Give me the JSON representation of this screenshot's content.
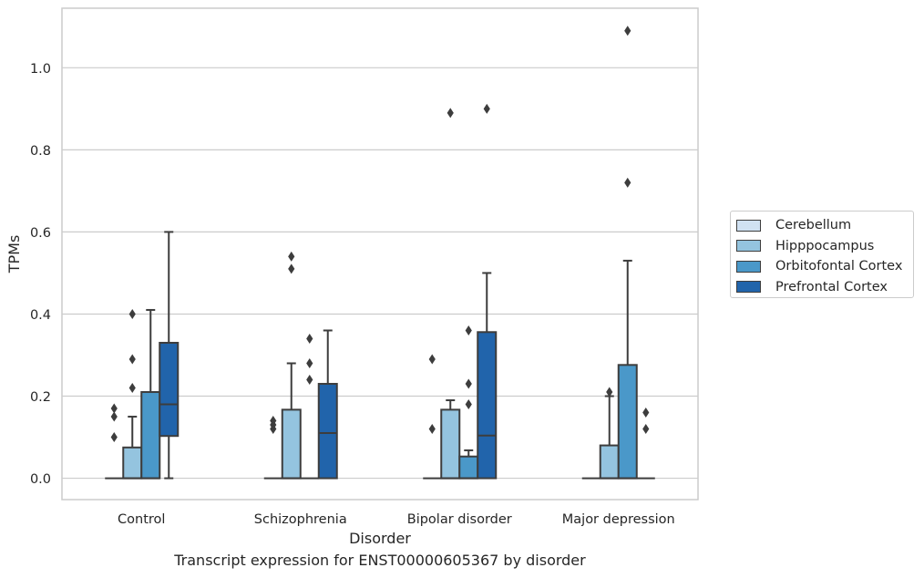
{
  "chart_data": {
    "type": "boxplot",
    "title": "",
    "caption": "Transcript expression for ENST00000605367 by disorder",
    "xlabel": "Disorder",
    "ylabel": "TPMs",
    "ylim": [
      -0.052,
      1.145
    ],
    "yticks": [
      0.0,
      0.2,
      0.4,
      0.6,
      0.8,
      1.0
    ],
    "ytick_labels": [
      "0.0",
      "0.2",
      "0.4",
      "0.6",
      "0.8",
      "1.0"
    ],
    "grid": "horizontal",
    "legend_position": "right",
    "categories": [
      "Control",
      "Schizophrenia",
      "Bipolar disorder",
      "Major depression"
    ],
    "series": [
      {
        "name": "Cerebellum",
        "color": "#d0e1f2",
        "boxes": [
          {
            "q1": 0,
            "median": 0,
            "q3": 0,
            "whisker_low": 0,
            "whisker_high": 0,
            "outliers": [
              0.1,
              0.15,
              0.17
            ]
          },
          {
            "q1": 0,
            "median": 0,
            "q3": 0,
            "whisker_low": 0,
            "whisker_high": 0,
            "outliers": [
              0.12,
              0.13,
              0.14
            ]
          },
          {
            "q1": 0,
            "median": 0,
            "q3": 0,
            "whisker_low": 0,
            "whisker_high": 0,
            "outliers": [
              0.12,
              0.29
            ]
          },
          {
            "q1": 0,
            "median": 0,
            "q3": 0,
            "whisker_low": 0,
            "whisker_high": 0,
            "outliers": []
          }
        ]
      },
      {
        "name": "Hipppocampus",
        "color": "#94c4df",
        "boxes": [
          {
            "q1": 0,
            "median": 0,
            "q3": 0.075,
            "whisker_low": 0,
            "whisker_high": 0.15,
            "outliers": [
              0.22,
              0.29,
              0.4
            ]
          },
          {
            "q1": 0,
            "median": 0,
            "q3": 0.167,
            "whisker_low": 0,
            "whisker_high": 0.28,
            "outliers": [
              0.51,
              0.54
            ]
          },
          {
            "q1": 0,
            "median": 0,
            "q3": 0.167,
            "whisker_low": 0,
            "whisker_high": 0.19,
            "outliers": [
              0.89
            ]
          },
          {
            "q1": 0,
            "median": 0,
            "q3": 0.08,
            "whisker_low": 0,
            "whisker_high": 0.2,
            "outliers": [
              0.21
            ]
          }
        ]
      },
      {
        "name": "Orbitofontal Cortex",
        "color": "#4a98c9",
        "boxes": [
          {
            "q1": 0,
            "median": 0,
            "q3": 0.21,
            "whisker_low": 0,
            "whisker_high": 0.41,
            "outliers": []
          },
          {
            "q1": 0,
            "median": 0,
            "q3": 0,
            "whisker_low": 0,
            "whisker_high": 0,
            "outliers": [
              0.24,
              0.28,
              0.34
            ]
          },
          {
            "q1": 0,
            "median": 0,
            "q3": 0.053,
            "whisker_low": 0,
            "whisker_high": 0.068,
            "outliers": [
              0.18,
              0.23,
              0.36
            ]
          },
          {
            "q1": 0,
            "median": 0,
            "q3": 0.276,
            "whisker_low": 0,
            "whisker_high": 0.53,
            "outliers": [
              0.72,
              1.09
            ]
          }
        ]
      },
      {
        "name": "Prefrontal Cortex",
        "color": "#2164ab",
        "boxes": [
          {
            "q1": 0.103,
            "median": 0.18,
            "q3": 0.33,
            "whisker_low": 0,
            "whisker_high": 0.6,
            "outliers": []
          },
          {
            "q1": 0,
            "median": 0.11,
            "q3": 0.23,
            "whisker_low": 0,
            "whisker_high": 0.36,
            "outliers": []
          },
          {
            "q1": 0,
            "median": 0.104,
            "q3": 0.356,
            "whisker_low": 0,
            "whisker_high": 0.5,
            "outliers": [
              0.9
            ]
          },
          {
            "q1": 0,
            "median": 0,
            "q3": 0,
            "whisker_low": 0,
            "whisker_high": 0,
            "outliers": [
              0.12,
              0.16
            ]
          }
        ]
      }
    ]
  }
}
